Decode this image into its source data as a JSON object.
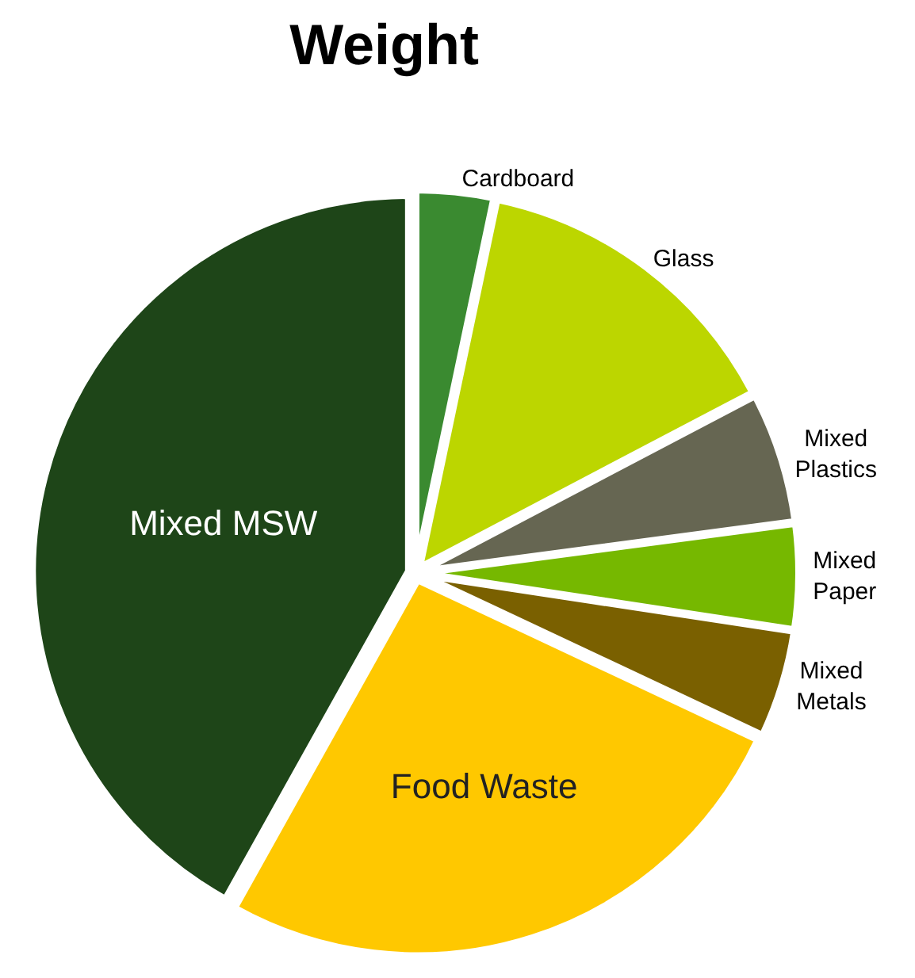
{
  "chart_data": {
    "type": "pie",
    "title": "Weight",
    "categories": [
      "Cardboard",
      "Glass",
      "Mixed Plastics",
      "Mixed Paper",
      "Mixed Metals",
      "Food Waste",
      "Mixed MSW"
    ],
    "values": [
      3.3,
      14,
      5.6,
      4.5,
      4.6,
      26.1,
      41.9
    ],
    "colors": [
      "#3a8a30",
      "#bcd600",
      "#666652",
      "#76b800",
      "#7a6000",
      "#ffc800",
      "#1e4518"
    ],
    "legend": false
  }
}
